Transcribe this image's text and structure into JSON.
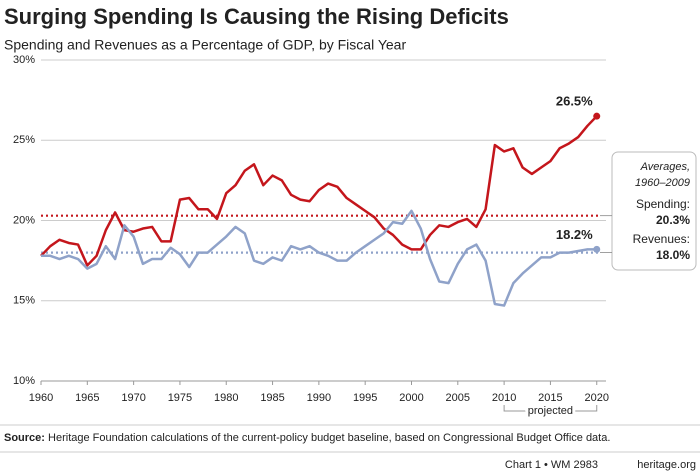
{
  "chart_data": {
    "type": "line",
    "title": "Surging Spending Is Causing the Rising Deficits",
    "subtitle": "Spending and Revenues as a Percentage of GDP, by Fiscal Year",
    "x": [
      1960,
      1961,
      1962,
      1963,
      1964,
      1965,
      1966,
      1967,
      1968,
      1969,
      1970,
      1971,
      1972,
      1973,
      1974,
      1975,
      1976,
      1977,
      1978,
      1979,
      1980,
      1981,
      1982,
      1983,
      1984,
      1985,
      1986,
      1987,
      1988,
      1989,
      1990,
      1991,
      1992,
      1993,
      1994,
      1995,
      1996,
      1997,
      1998,
      1999,
      2000,
      2001,
      2002,
      2003,
      2004,
      2005,
      2006,
      2007,
      2008,
      2009,
      2010,
      2011,
      2012,
      2013,
      2014,
      2015,
      2016,
      2017,
      2018,
      2019,
      2020
    ],
    "series": [
      {
        "name": "Spending",
        "color": "#c4161c",
        "values": [
          17.8,
          18.4,
          18.8,
          18.6,
          18.5,
          17.2,
          17.8,
          19.4,
          20.5,
          19.4,
          19.3,
          19.5,
          19.6,
          18.7,
          18.7,
          21.3,
          21.4,
          20.7,
          20.7,
          20.1,
          21.7,
          22.2,
          23.1,
          23.5,
          22.2,
          22.8,
          22.5,
          21.6,
          21.3,
          21.2,
          21.9,
          22.3,
          22.1,
          21.4,
          21.0,
          20.6,
          20.2,
          19.5,
          19.1,
          18.5,
          18.2,
          18.2,
          19.1,
          19.7,
          19.6,
          19.9,
          20.1,
          19.6,
          20.7,
          24.7,
          24.3,
          24.5,
          23.3,
          22.9,
          23.3,
          23.7,
          24.5,
          24.8,
          25.2,
          25.9,
          26.5
        ]
      },
      {
        "name": "Revenues",
        "color": "#8fa2c9",
        "values": [
          17.8,
          17.8,
          17.6,
          17.8,
          17.6,
          17.0,
          17.3,
          18.4,
          17.6,
          19.7,
          19.0,
          17.3,
          17.6,
          17.6,
          18.3,
          17.9,
          17.1,
          18.0,
          18.0,
          18.5,
          19.0,
          19.6,
          19.2,
          17.5,
          17.3,
          17.7,
          17.5,
          18.4,
          18.2,
          18.4,
          18.0,
          17.8,
          17.5,
          17.5,
          18.0,
          18.4,
          18.8,
          19.2,
          19.9,
          19.8,
          20.6,
          19.5,
          17.6,
          16.2,
          16.1,
          17.3,
          18.2,
          18.5,
          17.5,
          14.8,
          14.7,
          16.1,
          16.7,
          17.2,
          17.7,
          17.7,
          18.0,
          18.0,
          18.1,
          18.2,
          18.2
        ]
      }
    ],
    "end_labels": [
      "26.5%",
      "18.2%"
    ],
    "xlim": [
      1960,
      2021
    ],
    "xticks": [
      1960,
      1965,
      1970,
      1975,
      1980,
      1985,
      1990,
      1995,
      2000,
      2005,
      2010,
      2015,
      2020
    ],
    "ylim": [
      10,
      30
    ],
    "yticks": [
      {
        "value": 10,
        "label": "10%"
      },
      {
        "value": 15,
        "label": "15%"
      },
      {
        "value": 20,
        "label": "20%"
      },
      {
        "value": 25,
        "label": "25%"
      },
      {
        "value": 30,
        "label": "30%"
      }
    ],
    "grid": true,
    "averages_title": [
      "Averages,",
      "1960–2009"
    ],
    "average_lines": [
      {
        "name": "Spending:",
        "value": 20.3,
        "label": "20.3%",
        "color": "#c4161c"
      },
      {
        "name": "Revenues:",
        "value": 18.0,
        "label": "18.0%",
        "color": "#8fa2c9"
      }
    ],
    "projected": {
      "text": "projected",
      "from": 2010,
      "to": 2020
    },
    "source_label": "Source:",
    "source": "Heritage Foundation calculations of the current-policy budget baseline, based on Congressional Budget Office data.",
    "footer": "Chart 1 • WM 2983",
    "footer_site": "heritage.org"
  }
}
